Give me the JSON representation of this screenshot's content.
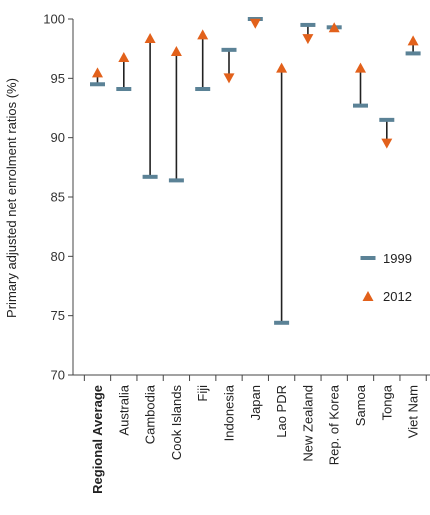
{
  "chart_data": {
    "type": "dumbbell",
    "ylabel": "Primary adjusted net enrolment ratios (%)",
    "xlabel": "",
    "ylim": [
      70,
      100
    ],
    "yticks": [
      70,
      75,
      80,
      85,
      90,
      95,
      100
    ],
    "grid": false,
    "legend": {
      "position": "right"
    },
    "categories": [
      "Regional Average",
      "Australia",
      "Cambodia",
      "Cook Islands",
      "Fiji",
      "Indonesia",
      "Japan",
      "Lao PDR",
      "New Zealand",
      "Rep. of Korea",
      "Samoa",
      "Tonga",
      "Viet Nam"
    ],
    "bold_categories": [
      "Regional Average"
    ],
    "series": [
      {
        "name": "1999",
        "marker": "dash",
        "color": "#5b8296",
        "values": [
          94.5,
          94.1,
          86.7,
          86.4,
          94.1,
          97.4,
          100.0,
          74.4,
          99.5,
          99.3,
          92.7,
          91.5,
          97.1
        ]
      },
      {
        "name": "2012",
        "marker": "triangle",
        "color": "#e2611b",
        "values": [
          95.5,
          96.8,
          98.4,
          97.3,
          98.7,
          95.0,
          99.6,
          95.9,
          98.3,
          99.3,
          95.9,
          89.5,
          98.2
        ]
      }
    ]
  }
}
